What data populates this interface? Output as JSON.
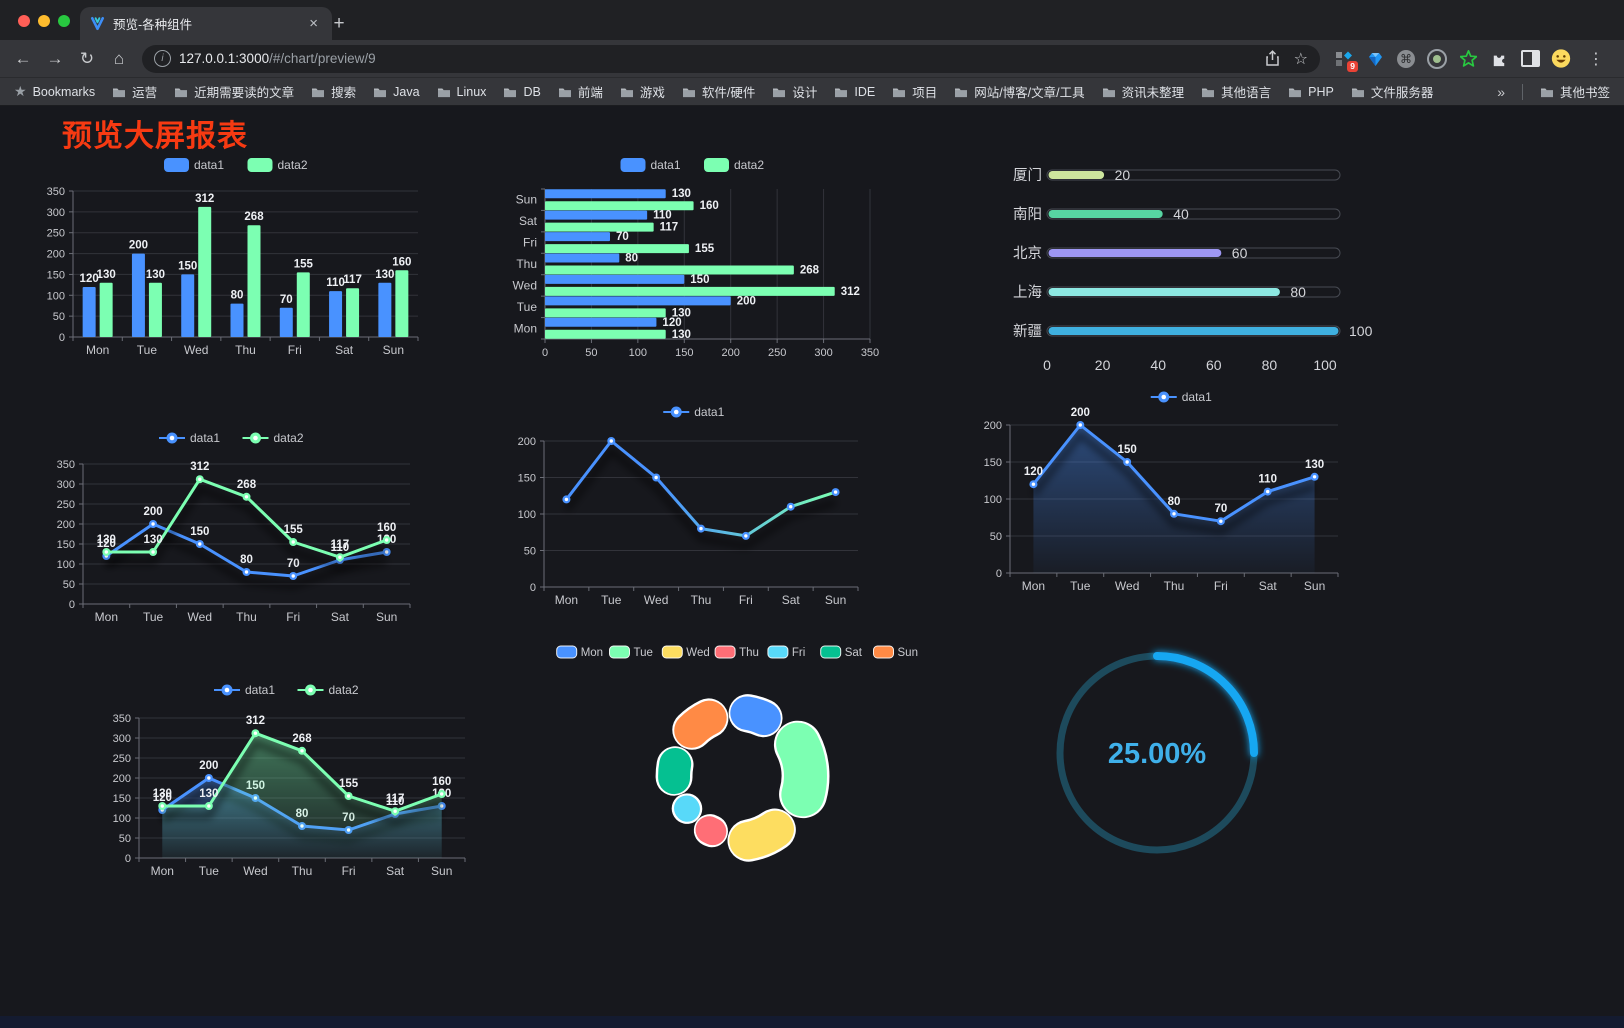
{
  "browser": {
    "traffic_lights": {
      "close": "#ff5f57",
      "minimize": "#febc2e",
      "zoom": "#28c840"
    },
    "tab": {
      "title": "预览-各种组件",
      "close_glyph": "×",
      "new_tab_glyph": "+"
    },
    "nav": {
      "back": "←",
      "forward": "→",
      "reload": "↻",
      "home": "⌂",
      "menu": "⋮"
    },
    "omnibox": {
      "info_glyph": "i",
      "url_host": "127.0.0.1:3000",
      "url_path": "/#/chart/preview/9",
      "star_glyph": "☆"
    },
    "extensions": {
      "grid_badge": "9",
      "command_glyph": "⌘"
    },
    "bookmarks": {
      "starred_label": "Bookmarks",
      "items": [
        "运营",
        "近期需要读的文章",
        "搜索",
        "Java",
        "Linux",
        "DB",
        "前端",
        "游戏",
        "软件/硬件",
        "设计",
        "IDE",
        "项目",
        "网站/博客/文章/工具",
        "资讯未整理",
        "其他语言",
        "PHP",
        "文件服务器"
      ],
      "overflow_glyph": "»",
      "other_label": "其他书签"
    }
  },
  "page": {
    "title": "预览大屏报表",
    "title_color": "#f73a12",
    "background": "#17181d"
  },
  "chart_data": [
    {
      "id": "grouped-bar",
      "type": "bar",
      "categories": [
        "Mon",
        "Tue",
        "Wed",
        "Thu",
        "Fri",
        "Sat",
        "Sun"
      ],
      "series": [
        {
          "name": "data1",
          "color": "#4992ff",
          "values": [
            120,
            200,
            150,
            80,
            70,
            110,
            130
          ]
        },
        {
          "name": "data2",
          "color": "#7cffb2",
          "values": [
            130,
            130,
            312,
            268,
            155,
            117,
            160
          ]
        }
      ],
      "ylim": [
        0,
        350
      ],
      "ystep": 50,
      "legend": [
        "data1",
        "data2"
      ],
      "show_labels": true
    },
    {
      "id": "horizontal-bar",
      "type": "bar",
      "orientation": "horizontal",
      "categories_top_to_bottom": [
        "Sun",
        "Sat",
        "Fri",
        "Thu",
        "Wed",
        "Tue",
        "Mon"
      ],
      "series": [
        {
          "name": "data1",
          "color": "#4992ff",
          "values": [
            130,
            110,
            70,
            80,
            150,
            200,
            120
          ]
        },
        {
          "name": "data2",
          "color": "#7cffb2",
          "values": [
            160,
            117,
            155,
            268,
            312,
            130,
            130
          ]
        }
      ],
      "xlim": [
        0,
        350
      ],
      "xstep": 50,
      "legend": [
        "data1",
        "data2"
      ],
      "show_labels": true
    },
    {
      "id": "capsule-progress",
      "type": "bar",
      "orientation": "horizontal",
      "categories": [
        "厦门",
        "南阳",
        "北京",
        "上海",
        "新疆"
      ],
      "values": [
        20,
        40,
        60,
        80,
        100
      ],
      "colors": [
        "#cde59d",
        "#57d4a2",
        "#9e97f3",
        "#8de8e2",
        "#3fb0e0"
      ],
      "xticks": [
        0,
        20,
        40,
        60,
        80,
        100
      ],
      "xlim": [
        0,
        100
      ]
    },
    {
      "id": "multi-line",
      "type": "line",
      "categories": [
        "Mon",
        "Tue",
        "Wed",
        "Thu",
        "Fri",
        "Sat",
        "Sun"
      ],
      "series": [
        {
          "name": "data1",
          "color": "#4992ff",
          "values": [
            120,
            200,
            150,
            80,
            70,
            110,
            130
          ]
        },
        {
          "name": "data2",
          "color": "#7cffb2",
          "values": [
            130,
            130,
            312,
            268,
            155,
            117,
            160
          ]
        }
      ],
      "ylim": [
        0,
        350
      ],
      "ystep": 50,
      "legend": [
        "data1",
        "data2"
      ],
      "show_labels": true,
      "area": false
    },
    {
      "id": "gradient-line",
      "type": "line",
      "categories": [
        "Mon",
        "Tue",
        "Wed",
        "Thu",
        "Fri",
        "Sat",
        "Sun"
      ],
      "series": [
        {
          "name": "data1",
          "color": "#4992ff",
          "gradient": [
            "#4992ff",
            "#7cffb2"
          ],
          "values": [
            120,
            200,
            150,
            80,
            70,
            110,
            130
          ]
        }
      ],
      "ylim": [
        0,
        200
      ],
      "ystep": 50,
      "legend": [
        "data1"
      ],
      "show_labels": false,
      "area": false
    },
    {
      "id": "area-line",
      "type": "area",
      "categories": [
        "Mon",
        "Tue",
        "Wed",
        "Thu",
        "Fri",
        "Sat",
        "Sun"
      ],
      "series": [
        {
          "name": "data1",
          "color": "#4992ff",
          "values": [
            120,
            200,
            150,
            80,
            70,
            110,
            130
          ]
        }
      ],
      "ylim": [
        0,
        200
      ],
      "ystep": 50,
      "legend": [
        "data1"
      ],
      "show_labels": true,
      "area": true
    },
    {
      "id": "multi-area-line",
      "type": "area",
      "categories": [
        "Mon",
        "Tue",
        "Wed",
        "Thu",
        "Fri",
        "Sat",
        "Sun"
      ],
      "series": [
        {
          "name": "data1",
          "color": "#4992ff",
          "values": [
            120,
            200,
            150,
            80,
            70,
            110,
            130
          ]
        },
        {
          "name": "data2",
          "color": "#7cffb2",
          "values": [
            130,
            130,
            312,
            268,
            155,
            117,
            160
          ]
        }
      ],
      "ylim": [
        0,
        350
      ],
      "ystep": 50,
      "legend": [
        "data1",
        "data2"
      ],
      "show_labels": true,
      "area": true
    },
    {
      "id": "rose-donut",
      "type": "pie",
      "labels": [
        "Mon",
        "Tue",
        "Wed",
        "Thu",
        "Fri",
        "Sat",
        "Sun"
      ],
      "values": [
        120,
        200,
        150,
        80,
        70,
        110,
        130
      ],
      "colors": [
        "#4992ff",
        "#7cffb2",
        "#fddd60",
        "#ff6e76",
        "#58d9f9",
        "#05c091",
        "#ff8a45"
      ]
    },
    {
      "id": "progress-gauge",
      "type": "gauge",
      "value": 25,
      "display": "25.00%",
      "color": "#18a7f2",
      "track_color": "#1d4a5c",
      "text_color": "#3fb0ea"
    }
  ]
}
